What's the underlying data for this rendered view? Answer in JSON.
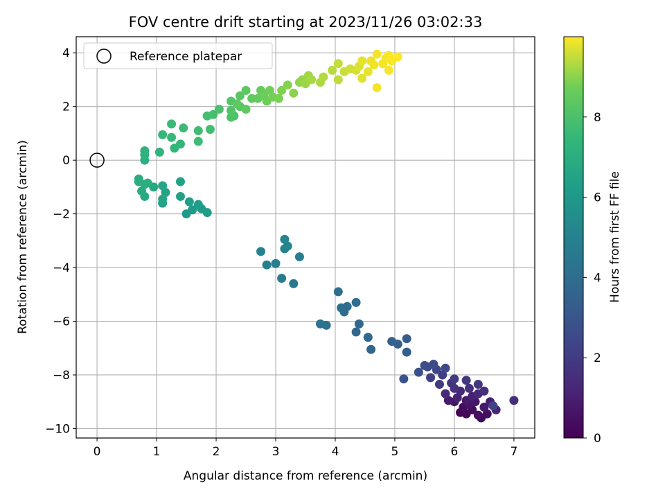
{
  "chart_data": {
    "type": "scatter",
    "title": "FOV centre drift starting at 2023/11/26 03:02:33",
    "xlabel": "Angular distance from reference (arcmin)",
    "ylabel": "Rotation from reference (arcmin)",
    "xlim": [
      -0.35,
      7.35
    ],
    "ylim": [
      -10.35,
      4.6
    ],
    "xticks": [
      0,
      1,
      2,
      3,
      4,
      5,
      6,
      7
    ],
    "yticks": [
      -10,
      -8,
      -6,
      -4,
      -2,
      0,
      2,
      4
    ],
    "grid": true,
    "legend": {
      "location": "upper-left",
      "entries": [
        "Reference platepar"
      ]
    },
    "reference_point": {
      "x": 0,
      "y": 0,
      "label": "Reference platepar"
    },
    "colorbar": {
      "label": "Hours from first FF file",
      "range": [
        0,
        10
      ],
      "ticks": [
        0,
        2,
        4,
        6,
        8
      ],
      "colormap": "viridis"
    },
    "points": [
      [
        6.1,
        -9.4,
        0.1
      ],
      [
        6.2,
        -9.45,
        0.2
      ],
      [
        6.45,
        -9.6,
        0.3
      ],
      [
        6.3,
        -9.3,
        0.35
      ],
      [
        6.15,
        -9.2,
        0.4
      ],
      [
        6.4,
        -9.5,
        0.45
      ],
      [
        6.55,
        -9.45,
        0.5
      ],
      [
        6.25,
        -9.1,
        0.55
      ],
      [
        6.0,
        -9.0,
        0.6
      ],
      [
        6.35,
        -9.0,
        0.7
      ],
      [
        6.5,
        -9.2,
        0.75
      ],
      [
        6.2,
        -8.95,
        0.8
      ],
      [
        5.9,
        -8.95,
        0.9
      ],
      [
        6.6,
        -9.0,
        1.0
      ],
      [
        6.3,
        -8.8,
        1.05
      ],
      [
        6.05,
        -8.85,
        1.1
      ],
      [
        6.7,
        -9.3,
        1.2
      ],
      [
        6.4,
        -8.7,
        1.25
      ],
      [
        6.1,
        -8.6,
        1.3
      ],
      [
        5.85,
        -8.7,
        1.4
      ],
      [
        6.5,
        -8.6,
        1.5
      ],
      [
        6.25,
        -8.5,
        1.55
      ],
      [
        6.0,
        -8.5,
        1.6
      ],
      [
        5.95,
        -8.3,
        1.7
      ],
      [
        6.4,
        -8.35,
        1.8
      ],
      [
        6.2,
        -8.2,
        1.85
      ],
      [
        5.75,
        -8.35,
        1.9
      ],
      [
        6.0,
        -8.15,
        2.0
      ],
      [
        5.8,
        -8.0,
        2.1
      ],
      [
        5.6,
        -8.1,
        2.2
      ],
      [
        6.65,
        -9.15,
        2.3
      ],
      [
        5.7,
        -7.8,
        2.4
      ],
      [
        5.85,
        -7.75,
        2.5
      ],
      [
        5.55,
        -7.7,
        2.55
      ],
      [
        5.65,
        -7.6,
        2.6
      ],
      [
        5.5,
        -7.65,
        2.7
      ],
      [
        5.4,
        -7.9,
        2.8
      ],
      [
        5.15,
        -8.15,
        2.9
      ],
      [
        7.0,
        -8.95,
        1.5
      ],
      [
        5.2,
        -6.65,
        3.3
      ],
      [
        5.2,
        -7.15,
        3.35
      ],
      [
        5.05,
        -6.85,
        3.4
      ],
      [
        4.95,
        -6.75,
        3.5
      ],
      [
        4.6,
        -7.05,
        3.6
      ],
      [
        4.55,
        -6.6,
        3.7
      ],
      [
        4.35,
        -6.4,
        3.75
      ],
      [
        4.4,
        -6.1,
        3.8
      ],
      [
        4.15,
        -5.65,
        3.9
      ],
      [
        4.2,
        -5.45,
        3.95
      ],
      [
        4.1,
        -5.5,
        4.0
      ],
      [
        4.35,
        -5.3,
        4.05
      ],
      [
        4.05,
        -4.9,
        4.1
      ],
      [
        3.85,
        -6.15,
        4.2
      ],
      [
        3.75,
        -6.1,
        4.3
      ],
      [
        3.3,
        -4.6,
        4.6
      ],
      [
        3.1,
        -4.4,
        4.7
      ],
      [
        3.4,
        -3.6,
        4.8
      ],
      [
        3.0,
        -3.85,
        4.85
      ],
      [
        2.85,
        -3.9,
        4.9
      ],
      [
        2.75,
        -3.4,
        5.0
      ],
      [
        3.15,
        -3.3,
        5.1
      ],
      [
        3.2,
        -3.2,
        5.15
      ],
      [
        3.15,
        -2.95,
        5.2
      ],
      [
        1.5,
        -2.0,
        6.0
      ],
      [
        1.6,
        -1.85,
        6.05
      ],
      [
        1.75,
        -1.8,
        6.1
      ],
      [
        1.85,
        -1.95,
        6.15
      ],
      [
        1.7,
        -1.65,
        6.2
      ],
      [
        1.55,
        -1.55,
        6.3
      ],
      [
        1.4,
        -1.35,
        6.4
      ],
      [
        1.4,
        -0.8,
        6.45
      ],
      [
        1.1,
        -1.6,
        6.5
      ],
      [
        1.15,
        -1.2,
        6.55
      ],
      [
        1.1,
        -1.45,
        6.6
      ],
      [
        1.1,
        -0.95,
        6.65
      ],
      [
        0.95,
        -1.0,
        6.7
      ],
      [
        0.8,
        -1.35,
        6.8
      ],
      [
        0.75,
        -1.15,
        6.85
      ],
      [
        0.8,
        -0.9,
        6.9
      ],
      [
        0.7,
        -0.7,
        6.95
      ],
      [
        0.7,
        -0.8,
        7.0
      ],
      [
        0.85,
        -0.85,
        7.05
      ],
      [
        0.8,
        0.0,
        7.1
      ],
      [
        0.8,
        0.2,
        7.15
      ],
      [
        0.8,
        0.35,
        7.2
      ],
      [
        1.05,
        0.3,
        7.3
      ],
      [
        1.3,
        0.45,
        7.4
      ],
      [
        1.4,
        0.6,
        7.45
      ],
      [
        1.1,
        0.95,
        7.5
      ],
      [
        1.25,
        0.85,
        7.55
      ],
      [
        1.25,
        1.35,
        7.6
      ],
      [
        1.45,
        1.2,
        7.65
      ],
      [
        1.7,
        0.7,
        7.7
      ],
      [
        1.7,
        1.1,
        7.75
      ],
      [
        1.9,
        1.15,
        7.8
      ],
      [
        1.85,
        1.65,
        7.85
      ],
      [
        1.95,
        1.7,
        7.9
      ],
      [
        2.05,
        1.9,
        8.0
      ],
      [
        2.25,
        1.6,
        8.05
      ],
      [
        2.3,
        1.65,
        8.1
      ],
      [
        2.25,
        1.85,
        8.15
      ],
      [
        2.25,
        2.2,
        8.2
      ],
      [
        2.4,
        2.0,
        8.25
      ],
      [
        2.4,
        2.4,
        8.3
      ],
      [
        2.5,
        2.6,
        8.35
      ],
      [
        2.35,
        2.1,
        8.4
      ],
      [
        2.5,
        1.9,
        8.45
      ],
      [
        2.6,
        2.3,
        8.5
      ],
      [
        2.7,
        2.3,
        8.55
      ],
      [
        2.75,
        2.6,
        8.6
      ],
      [
        2.8,
        2.4,
        8.65
      ],
      [
        2.85,
        2.2,
        8.7
      ],
      [
        2.9,
        2.6,
        8.75
      ],
      [
        2.95,
        2.35,
        8.8
      ],
      [
        3.05,
        2.3,
        8.85
      ],
      [
        3.1,
        2.6,
        8.9
      ],
      [
        3.2,
        2.8,
        8.95
      ],
      [
        3.3,
        2.5,
        9.0
      ],
      [
        3.4,
        2.9,
        9.05
      ],
      [
        3.45,
        3.0,
        9.1
      ],
      [
        3.5,
        2.85,
        9.15
      ],
      [
        3.55,
        3.15,
        9.2
      ],
      [
        3.6,
        3.0,
        9.25
      ],
      [
        3.75,
        2.9,
        9.3
      ],
      [
        3.8,
        3.1,
        9.35
      ],
      [
        3.95,
        3.35,
        9.4
      ],
      [
        4.05,
        3.0,
        9.45
      ],
      [
        4.05,
        3.6,
        9.5
      ],
      [
        4.15,
        3.3,
        9.55
      ],
      [
        4.25,
        3.4,
        9.6
      ],
      [
        4.35,
        3.35,
        9.65
      ],
      [
        4.4,
        3.5,
        9.7
      ],
      [
        4.45,
        3.05,
        9.75
      ],
      [
        4.45,
        3.7,
        9.8
      ],
      [
        4.55,
        3.3,
        9.82
      ],
      [
        4.6,
        3.7,
        9.85
      ],
      [
        4.65,
        3.55,
        9.87
      ],
      [
        4.7,
        3.95,
        9.9
      ],
      [
        4.7,
        2.7,
        9.9
      ],
      [
        4.8,
        3.6,
        9.92
      ],
      [
        4.85,
        3.8,
        9.94
      ],
      [
        4.9,
        3.35,
        9.95
      ],
      [
        4.9,
        3.9,
        9.96
      ],
      [
        4.95,
        3.7,
        9.97
      ],
      [
        5.05,
        3.85,
        9.98
      ]
    ]
  }
}
